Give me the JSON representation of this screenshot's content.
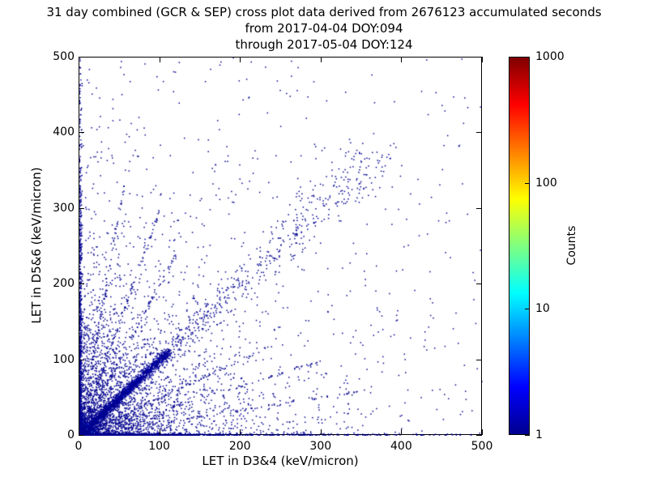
{
  "chart_data": {
    "type": "scatter",
    "title": "31 day combined (GCR & SEP) cross plot data derived from 2676123 accumulated seconds",
    "subtitle_from": "from 2017-04-04 DOY:094",
    "subtitle_through": "through 2017-05-04 DOY:124",
    "xlabel": "LET in D3&4 (keV/micron)",
    "ylabel": "LET in D5&6 (keV/micron)",
    "xlim": [
      0,
      500
    ],
    "ylim": [
      0,
      500
    ],
    "xticks": [
      0,
      100,
      200,
      300,
      400,
      500
    ],
    "yticks": [
      0,
      100,
      200,
      300,
      400,
      500
    ],
    "grid": false,
    "background": "#ffffff",
    "axis_color": "#000000",
    "point_color_low_count": "#00008f",
    "colorbar": {
      "label": "Counts",
      "scale": "log",
      "range": [
        1,
        1000
      ],
      "ticks": [
        1,
        10,
        100,
        1000
      ],
      "colormap": "jet",
      "gradient_top_to_bottom": [
        "#7f0000",
        "#ff0000",
        "#ffff00",
        "#00ffff",
        "#0000ff",
        "#00008f"
      ],
      "gradient_positions_pct": [
        0,
        12.5,
        37.5,
        62.5,
        87.5,
        100
      ]
    },
    "description": "2D density cross plot (jet colormap, log counts 1-1000). Very hot core (red/orange/yellow, counts ~100-1000) within ~10 keV/micron of the origin; bright cyan-green ridge along y=x from the origin out to ~75 keV/micron; diffuse blue fuzz around the diagonal out to ~110; sparse single-count dark-blue points along both axes and along the y=x diagonal up to ~370, plus isolated dark-blue points scattered over the whole 0-500 x 0-500 plane, densest in the lower-left quadrant.",
    "point_clusters": [
      {
        "name": "hot-core",
        "type": "radial_exp",
        "count": 2600,
        "scale": 5,
        "size": 1.7,
        "color_stops": [
          [
            0,
            "#bb0000"
          ],
          [
            2.5,
            "#ff2a00"
          ],
          [
            4.5,
            "#ff9900"
          ],
          [
            7,
            "#eaff00"
          ],
          [
            10,
            "#55ff66"
          ],
          [
            14,
            "#00eaff"
          ],
          [
            20,
            "#0077ff"
          ],
          [
            28,
            "#0011cc"
          ],
          [
            45,
            "#00008f"
          ]
        ]
      },
      {
        "name": "diagonal-streak",
        "type": "diagonal",
        "count": 2200,
        "tmax": 78,
        "spread": 1.2,
        "size": 1.6,
        "color_stops": [
          [
            0,
            "#aaff00"
          ],
          [
            8,
            "#33ffbb"
          ],
          [
            25,
            "#00d4ff"
          ],
          [
            45,
            "#0099ff"
          ],
          [
            60,
            "#0044ee"
          ],
          [
            72,
            "#0011bb"
          ],
          [
            78,
            "#0000a0"
          ]
        ]
      },
      {
        "name": "x-axis-hot",
        "type": "band",
        "axis": "x",
        "count": 500,
        "long_scale": 9,
        "thick_scale": 0.9,
        "size": 1.5,
        "color_stops": [
          [
            0,
            "#66ff33"
          ],
          [
            6,
            "#00ffcc"
          ],
          [
            14,
            "#00bbff"
          ],
          [
            24,
            "#0055ee"
          ],
          [
            34,
            "#0000bb"
          ]
        ]
      },
      {
        "name": "y-axis-hot",
        "type": "band",
        "axis": "y",
        "count": 500,
        "long_scale": 9,
        "thick_scale": 0.9,
        "size": 1.5,
        "color_stops": [
          [
            0,
            "#66ff33"
          ],
          [
            6,
            "#00ffcc"
          ],
          [
            14,
            "#00bbff"
          ],
          [
            24,
            "#0055ee"
          ],
          [
            34,
            "#0000bb"
          ]
        ]
      },
      {
        "name": "diagonal-fuzz",
        "type": "diagonal",
        "count": 1400,
        "tmax": 110,
        "spread": 6,
        "color": "#0000a0",
        "size": 1.5
      },
      {
        "name": "diagonal-sparse",
        "type": "diagonal_grow",
        "count": 780,
        "tmax": 370,
        "spread0": 2,
        "spread_rate": 0.09,
        "color": "#00008f",
        "size": 1.5
      },
      {
        "name": "x-axis-band",
        "type": "band",
        "axis": "x",
        "count": 900,
        "long_scale": 150,
        "thick_scale": 3,
        "color": "#00008f",
        "size": 1.5
      },
      {
        "name": "y-axis-band",
        "type": "band",
        "axis": "y",
        "count": 900,
        "long_scale": 150,
        "thick_scale": 3,
        "color": "#00008f",
        "size": 1.5
      },
      {
        "name": "lower-left-cloud",
        "type": "exp2d",
        "count": 2600,
        "xscale": 60,
        "yscale": 60,
        "color": "#00008f",
        "size": 1.5
      },
      {
        "name": "wide-scatter",
        "type": "exp2d",
        "count": 800,
        "xscale": 180,
        "yscale": 180,
        "color": "#00008f",
        "size": 1.5
      },
      {
        "name": "far-field",
        "type": "uniform",
        "count": 260,
        "color": "#00008f",
        "size": 1.5
      },
      {
        "name": "ray-slope-6",
        "type": "ray",
        "count": 130,
        "slope": 6,
        "tmax": 55,
        "spread": 1.5,
        "color": "#00008f",
        "size": 1.5
      },
      {
        "name": "ray-slope-3",
        "type": "ray",
        "count": 130,
        "slope": 3,
        "tmax": 100,
        "spread": 1.5,
        "color": "#00008f",
        "size": 1.5
      },
      {
        "name": "ray-slope-2",
        "type": "ray",
        "count": 120,
        "slope": 2,
        "tmax": 120,
        "spread": 2,
        "color": "#00008f",
        "size": 1.5
      },
      {
        "name": "ray-slope-05",
        "type": "ray",
        "count": 120,
        "slope": 0.5,
        "tmax": 240,
        "spread": 2,
        "color": "#00008f",
        "size": 1.5
      },
      {
        "name": "ray-slope-033",
        "type": "ray",
        "count": 110,
        "slope": 0.33,
        "tmax": 300,
        "spread": 2,
        "color": "#00008f",
        "size": 1.5
      },
      {
        "name": "ray-slope-017",
        "type": "ray",
        "count": 110,
        "slope": 0.17,
        "tmax": 350,
        "spread": 2,
        "color": "#00008f",
        "size": 1.5
      }
    ]
  }
}
